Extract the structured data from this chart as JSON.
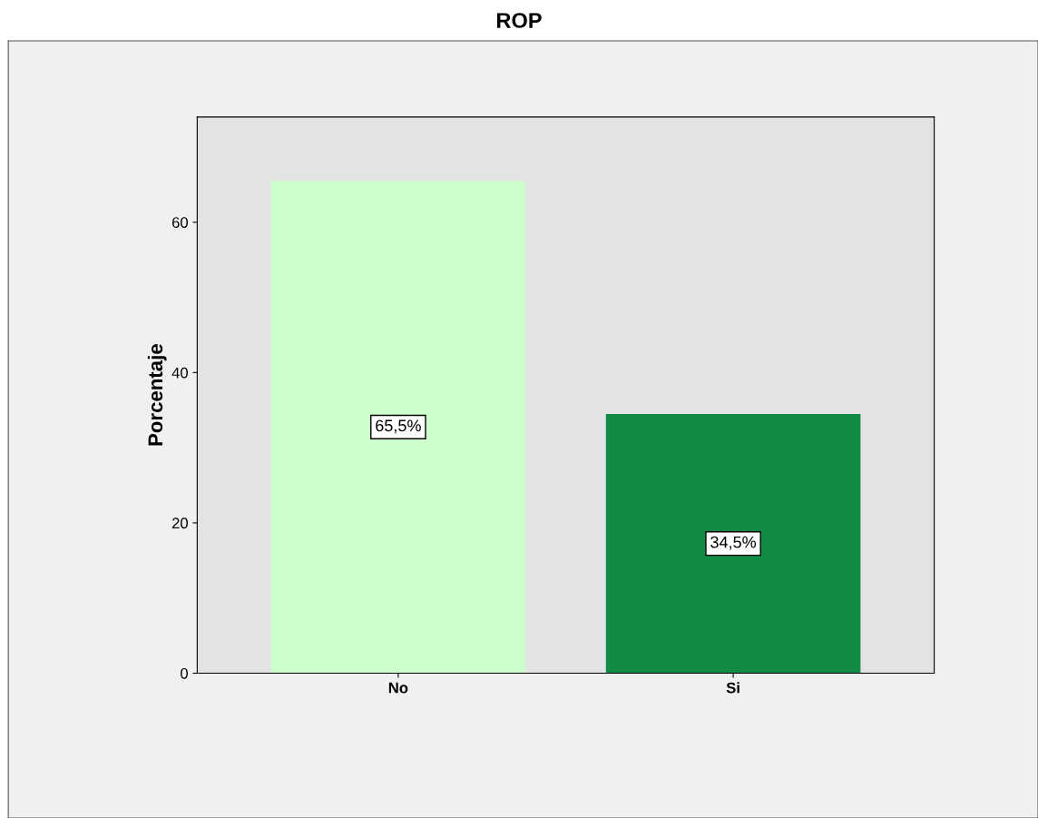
{
  "chart_data": {
    "type": "bar",
    "title": "ROP",
    "ylabel": "Porcentaje",
    "categories": [
      "No",
      "Si"
    ],
    "values": [
      65.5,
      34.5
    ],
    "colors": [
      "#ccffcc",
      "#118c46"
    ],
    "value_labels": [
      "65,5%",
      "34,5%"
    ],
    "ylim": [
      0,
      74
    ],
    "yticks": [
      0,
      20,
      40,
      60
    ],
    "grid": false,
    "legend": false
  }
}
